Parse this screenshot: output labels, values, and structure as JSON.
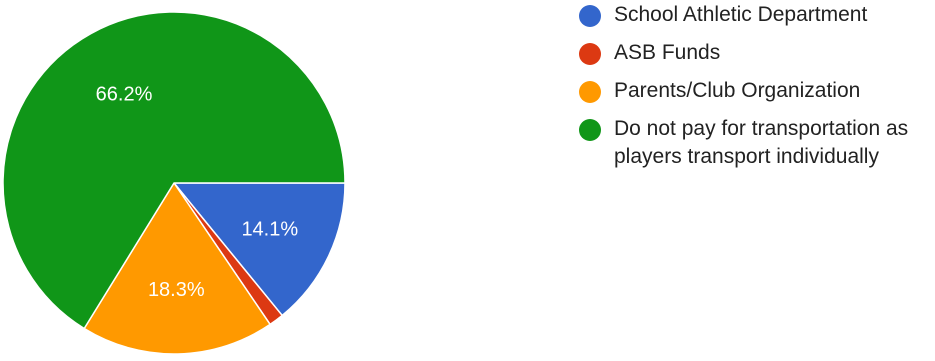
{
  "chart_data": {
    "type": "pie",
    "title": "",
    "slices": [
      {
        "label": "School Athletic Department",
        "value": 14.1,
        "display": "14.1%",
        "color": "#3366cc",
        "show_label": true
      },
      {
        "label": "ASB Funds",
        "value": 1.4,
        "display": "",
        "color": "#dc3912",
        "show_label": false
      },
      {
        "label": "Parents/Club Organization",
        "value": 18.3,
        "display": "18.3%",
        "color": "#ff9900",
        "show_label": true
      },
      {
        "label": "Do not pay for transportation as players transport individually",
        "value": 66.2,
        "display": "66.2%",
        "color": "#109618",
        "show_label": true
      }
    ],
    "start": "3 o'clock",
    "direction": "clockwise",
    "legend_position": "right"
  },
  "legend": {
    "items": [
      {
        "label": "School Athletic Department",
        "color": "#3366cc"
      },
      {
        "label": "ASB Funds",
        "color": "#dc3912"
      },
      {
        "label": "Parents/Club Organization",
        "color": "#ff9900"
      },
      {
        "label": "Do not pay for transportation as players transport individually",
        "color": "#109618"
      }
    ]
  }
}
